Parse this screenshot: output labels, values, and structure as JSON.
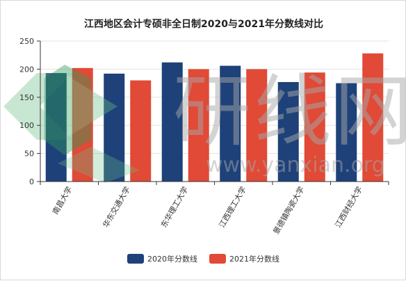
{
  "chart_data": {
    "type": "bar",
    "title": "江西地区会计专硕非全日制2020与2021年分数线对比",
    "xlabel": "",
    "ylabel": "",
    "ylim": [
      0,
      250
    ],
    "yticks": [
      0,
      50,
      100,
      150,
      200,
      250
    ],
    "grid": true,
    "legend_position": "bottom",
    "categories": [
      "南昌大学",
      "华东交通大学",
      "东华理工大学",
      "江西理工大学",
      "景德镇陶瓷大学",
      "江西财经大学"
    ],
    "series": [
      {
        "name": "2020年分数线",
        "color": "#1e4179",
        "values": [
          193,
          192,
          212,
          206,
          177,
          175
        ]
      },
      {
        "name": "2021年分数线",
        "color": "#e04a36",
        "values": [
          202,
          180,
          200,
          200,
          194,
          228
        ]
      }
    ]
  },
  "watermark": {
    "text": "研线网",
    "url": "www.yanxian.org"
  }
}
